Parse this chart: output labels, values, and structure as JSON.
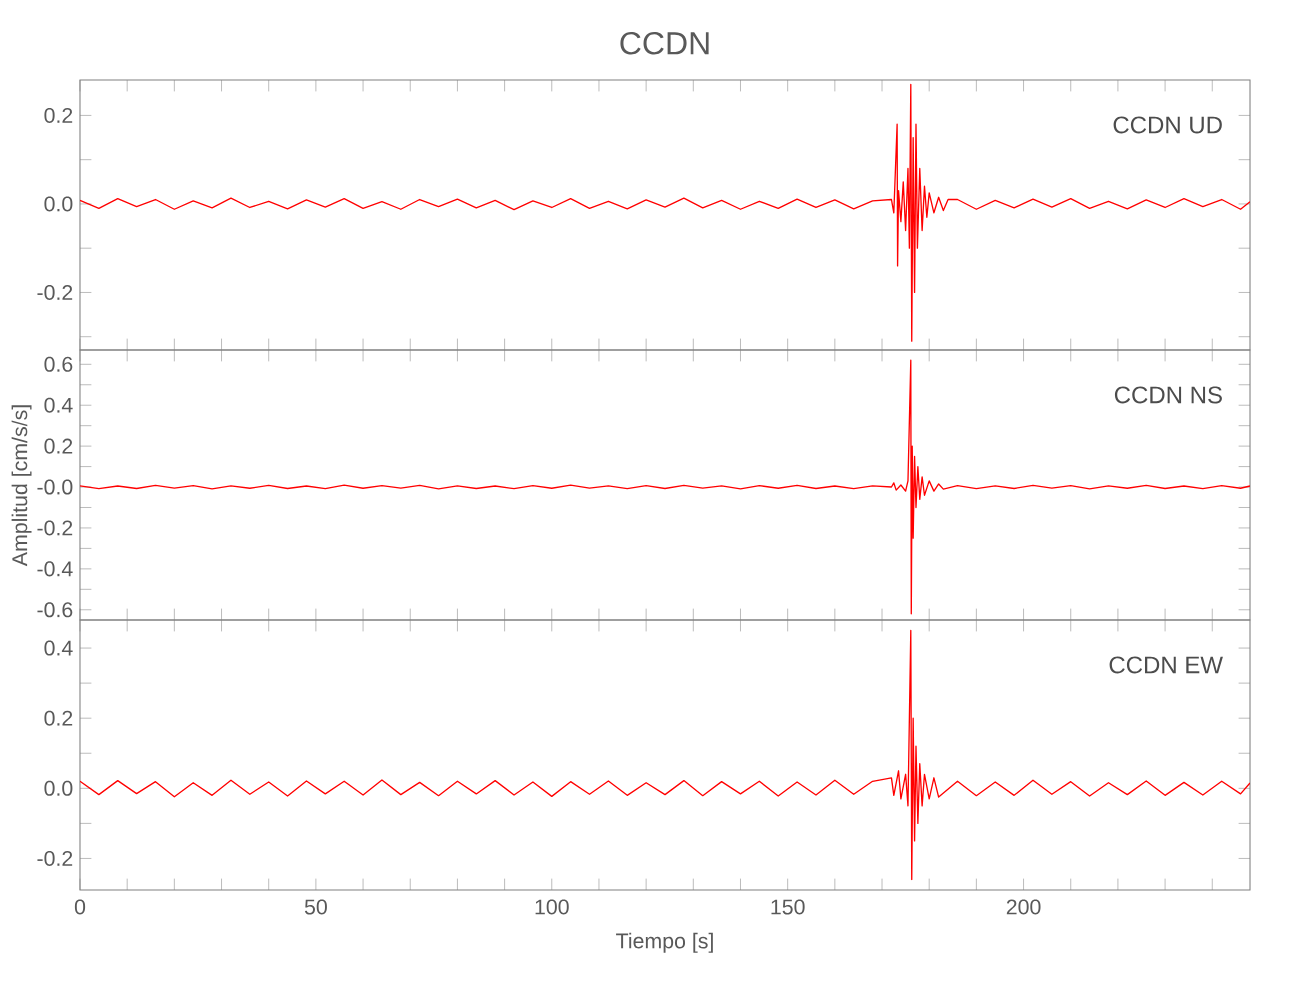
{
  "chart_data": [
    {
      "type": "line",
      "title": "CCDN",
      "annotations": [
        "CCDN   UD"
      ],
      "color": "#ff0000",
      "tick_labels": "y",
      "xlim": [
        0,
        248
      ],
      "ylim": [
        -0.33,
        0.28
      ],
      "xticks": [
        0,
        {
          "value": 10,
          "label": null
        },
        {
          "value": 20,
          "label": null
        },
        {
          "value": 30,
          "label": null
        },
        {
          "value": 40,
          "label": null
        },
        50,
        {
          "value": 60,
          "label": null
        },
        {
          "value": 70,
          "label": null
        },
        {
          "value": 80,
          "label": null
        },
        {
          "value": 90,
          "label": null
        },
        100,
        {
          "value": 110,
          "label": null
        },
        {
          "value": 120,
          "label": null
        },
        {
          "value": 130,
          "label": null
        },
        {
          "value": 140,
          "label": null
        },
        150,
        {
          "value": 160,
          "label": null
        },
        {
          "value": 170,
          "label": null
        },
        {
          "value": 180,
          "label": null
        },
        {
          "value": 190,
          "label": null
        },
        200,
        {
          "value": 210,
          "label": null
        },
        {
          "value": 220,
          "label": null
        },
        {
          "value": 230,
          "label": null
        },
        {
          "value": 240,
          "label": null
        }
      ],
      "yticks": [
        {
          "value": -0.3,
          "label": null
        },
        {
          "value": -0.2,
          "label": "-0.2"
        },
        {
          "value": -0.1,
          "label": null
        },
        {
          "value": 0,
          "label": "0.0"
        },
        {
          "value": 0.1,
          "label": null
        },
        {
          "value": 0.2,
          "label": "0.2"
        }
      ],
      "x": [
        0,
        4,
        8,
        12,
        16,
        20,
        24,
        28,
        32,
        36,
        40,
        44,
        48,
        52,
        56,
        60,
        64,
        68,
        72,
        76,
        80,
        84,
        88,
        92,
        96,
        100,
        104,
        108,
        112,
        116,
        120,
        124,
        128,
        132,
        136,
        140,
        144,
        148,
        152,
        156,
        160,
        164,
        168,
        172,
        172.5,
        173.2,
        173.3,
        173.5,
        174,
        174.5,
        175,
        175.5,
        175.8,
        176.1,
        176.3,
        176.6,
        176.9,
        177.2,
        177.5,
        178,
        178.5,
        179,
        179.5,
        180,
        181,
        182,
        183,
        184,
        186,
        190,
        194,
        198,
        202,
        206,
        210,
        214,
        218,
        222,
        226,
        230,
        234,
        238,
        242,
        246,
        248
      ],
      "values": [
        0.008,
        -0.01,
        0.012,
        -0.006,
        0.01,
        -0.012,
        0.007,
        -0.009,
        0.013,
        -0.008,
        0.006,
        -0.011,
        0.009,
        -0.007,
        0.012,
        -0.01,
        0.005,
        -0.012,
        0.01,
        -0.006,
        0.011,
        -0.009,
        0.008,
        -0.013,
        0.007,
        -0.008,
        0.012,
        -0.01,
        0.006,
        -0.011,
        0.009,
        -0.007,
        0.013,
        -0.009,
        0.008,
        -0.012,
        0.006,
        -0.01,
        0.011,
        -0.008,
        0.009,
        -0.011,
        0.007,
        0.01,
        -0.02,
        0.18,
        -0.14,
        0.03,
        -0.04,
        0.05,
        -0.06,
        0.08,
        -0.1,
        0.27,
        -0.31,
        0.15,
        -0.2,
        0.18,
        -0.1,
        0.08,
        -0.06,
        0.04,
        -0.03,
        0.025,
        -0.02,
        0.015,
        -0.015,
        0.01,
        0.01,
        -0.012,
        0.008,
        -0.009,
        0.011,
        -0.007,
        0.012,
        -0.01,
        0.006,
        -0.011,
        0.009,
        -0.008,
        0.012,
        -0.006,
        0.01,
        -0.012,
        0.005
      ]
    },
    {
      "type": "line",
      "ylabel": "Amplitud [cm/s/s]",
      "annotations": [
        "CCDN   NS"
      ],
      "color": "#ff0000",
      "tick_labels": "y",
      "xlim": [
        0,
        248
      ],
      "ylim": [
        -0.65,
        0.67
      ],
      "xticks": [
        0,
        {
          "value": 10,
          "label": null
        },
        {
          "value": 20,
          "label": null
        },
        {
          "value": 30,
          "label": null
        },
        {
          "value": 40,
          "label": null
        },
        50,
        {
          "value": 60,
          "label": null
        },
        {
          "value": 70,
          "label": null
        },
        {
          "value": 80,
          "label": null
        },
        {
          "value": 90,
          "label": null
        },
        100,
        {
          "value": 110,
          "label": null
        },
        {
          "value": 120,
          "label": null
        },
        {
          "value": 130,
          "label": null
        },
        {
          "value": 140,
          "label": null
        },
        150,
        {
          "value": 160,
          "label": null
        },
        {
          "value": 170,
          "label": null
        },
        {
          "value": 180,
          "label": null
        },
        {
          "value": 190,
          "label": null
        },
        200,
        {
          "value": 210,
          "label": null
        },
        {
          "value": 220,
          "label": null
        },
        {
          "value": 230,
          "label": null
        },
        {
          "value": 240,
          "label": null
        }
      ],
      "yticks": [
        {
          "value": -0.6,
          "label": "-0.6"
        },
        {
          "value": -0.5,
          "label": null
        },
        {
          "value": -0.4,
          "label": "-0.4"
        },
        {
          "value": -0.3,
          "label": null
        },
        {
          "value": -0.2,
          "label": "-0.2"
        },
        {
          "value": -0.1,
          "label": null
        },
        {
          "value": 0,
          "label": "-0.0"
        },
        {
          "value": 0.1,
          "label": null
        },
        {
          "value": 0.2,
          "label": "0.2"
        },
        {
          "value": 0.3,
          "label": null
        },
        {
          "value": 0.4,
          "label": "0.4"
        },
        {
          "value": 0.5,
          "label": null
        },
        {
          "value": 0.6,
          "label": "0.6"
        }
      ],
      "x": [
        0,
        4,
        8,
        12,
        16,
        20,
        24,
        28,
        32,
        36,
        40,
        44,
        48,
        52,
        56,
        60,
        64,
        68,
        72,
        76,
        80,
        84,
        88,
        92,
        96,
        100,
        104,
        108,
        112,
        116,
        120,
        124,
        128,
        132,
        136,
        140,
        144,
        148,
        152,
        156,
        160,
        164,
        168,
        172,
        172.5,
        173,
        174,
        175,
        175.5,
        176.1,
        176.2,
        176.4,
        176.6,
        176.9,
        177.2,
        177.6,
        178,
        178.5,
        179,
        180,
        181,
        182,
        183,
        186,
        190,
        194,
        198,
        202,
        206,
        210,
        214,
        218,
        222,
        226,
        230,
        234,
        238,
        242,
        246,
        248
      ],
      "values": [
        0.006,
        -0.008,
        0.005,
        -0.007,
        0.008,
        -0.005,
        0.007,
        -0.009,
        0.006,
        -0.006,
        0.008,
        -0.007,
        0.005,
        -0.008,
        0.009,
        -0.006,
        0.007,
        -0.005,
        0.008,
        -0.009,
        0.006,
        -0.007,
        0.005,
        -0.008,
        0.007,
        -0.006,
        0.009,
        -0.005,
        0.006,
        -0.008,
        0.007,
        -0.007,
        0.008,
        -0.005,
        0.006,
        -0.009,
        0.007,
        -0.006,
        0.008,
        -0.007,
        0.005,
        -0.008,
        0.006,
        0.0,
        0.02,
        -0.015,
        0.01,
        -0.02,
        0.03,
        0.62,
        -0.62,
        0.2,
        -0.25,
        0.15,
        -0.1,
        0.1,
        -0.06,
        0.05,
        -0.04,
        0.03,
        -0.02,
        0.015,
        -0.01,
        0.007,
        -0.008,
        0.006,
        -0.007,
        0.008,
        -0.005,
        0.007,
        -0.009,
        0.006,
        -0.006,
        0.008,
        -0.007,
        0.005,
        -0.008,
        0.007,
        -0.006,
        0.005
      ]
    },
    {
      "type": "line",
      "xlabel": "Tiempo [s]",
      "annotations": [
        "CCDN   EW"
      ],
      "color": "#ff0000",
      "xlim": [
        0,
        248
      ],
      "ylim": [
        -0.29,
        0.48
      ],
      "xticks": [
        0,
        {
          "value": 10,
          "label": null
        },
        {
          "value": 20,
          "label": null
        },
        {
          "value": 30,
          "label": null
        },
        {
          "value": 40,
          "label": null
        },
        50,
        {
          "value": 60,
          "label": null
        },
        {
          "value": 70,
          "label": null
        },
        {
          "value": 80,
          "label": null
        },
        {
          "value": 90,
          "label": null
        },
        100,
        {
          "value": 110,
          "label": null
        },
        {
          "value": 120,
          "label": null
        },
        {
          "value": 130,
          "label": null
        },
        {
          "value": 140,
          "label": null
        },
        150,
        {
          "value": 160,
          "label": null
        },
        {
          "value": 170,
          "label": null
        },
        {
          "value": 180,
          "label": null
        },
        {
          "value": 190,
          "label": null
        },
        200,
        {
          "value": 210,
          "label": null
        },
        {
          "value": 220,
          "label": null
        },
        {
          "value": 230,
          "label": null
        },
        {
          "value": 240,
          "label": null
        }
      ],
      "yticks": [
        {
          "value": -0.2,
          "label": "-0.2"
        },
        {
          "value": -0.1,
          "label": null
        },
        {
          "value": 0,
          "label": "0.0"
        },
        {
          "value": 0.1,
          "label": null
        },
        {
          "value": 0.2,
          "label": "0.2"
        },
        {
          "value": 0.3,
          "label": null
        },
        {
          "value": 0.4,
          "label": "0.4"
        }
      ],
      "x": [
        0,
        4,
        8,
        12,
        16,
        20,
        24,
        28,
        32,
        36,
        40,
        44,
        48,
        52,
        56,
        60,
        64,
        68,
        72,
        76,
        80,
        84,
        88,
        92,
        96,
        100,
        104,
        108,
        112,
        116,
        120,
        124,
        128,
        132,
        136,
        140,
        144,
        148,
        152,
        156,
        160,
        164,
        168,
        172,
        172.5,
        173.5,
        174,
        175,
        175.5,
        176.1,
        176.3,
        176.6,
        176.9,
        177.2,
        177.6,
        178,
        178.5,
        179,
        180,
        181,
        182,
        186,
        190,
        194,
        198,
        202,
        206,
        210,
        214,
        218,
        222,
        226,
        230,
        234,
        238,
        242,
        246,
        248
      ],
      "values": [
        0.02,
        -0.018,
        0.022,
        -0.015,
        0.019,
        -0.024,
        0.016,
        -0.02,
        0.023,
        -0.017,
        0.018,
        -0.022,
        0.021,
        -0.016,
        0.02,
        -0.019,
        0.024,
        -0.018,
        0.017,
        -0.021,
        0.02,
        -0.016,
        0.022,
        -0.019,
        0.018,
        -0.023,
        0.019,
        -0.017,
        0.021,
        -0.02,
        0.016,
        -0.018,
        0.022,
        -0.021,
        0.019,
        -0.016,
        0.02,
        -0.022,
        0.018,
        -0.019,
        0.023,
        -0.017,
        0.02,
        0.03,
        -0.02,
        0.05,
        -0.03,
        0.04,
        -0.05,
        0.45,
        -0.26,
        0.2,
        -0.15,
        0.12,
        -0.1,
        0.07,
        -0.05,
        0.04,
        -0.03,
        0.03,
        -0.025,
        0.02,
        -0.021,
        0.018,
        -0.02,
        0.023,
        -0.017,
        0.019,
        -0.022,
        0.016,
        -0.018,
        0.021,
        -0.02,
        0.017,
        -0.019,
        0.02,
        -0.016,
        0.015
      ]
    }
  ]
}
